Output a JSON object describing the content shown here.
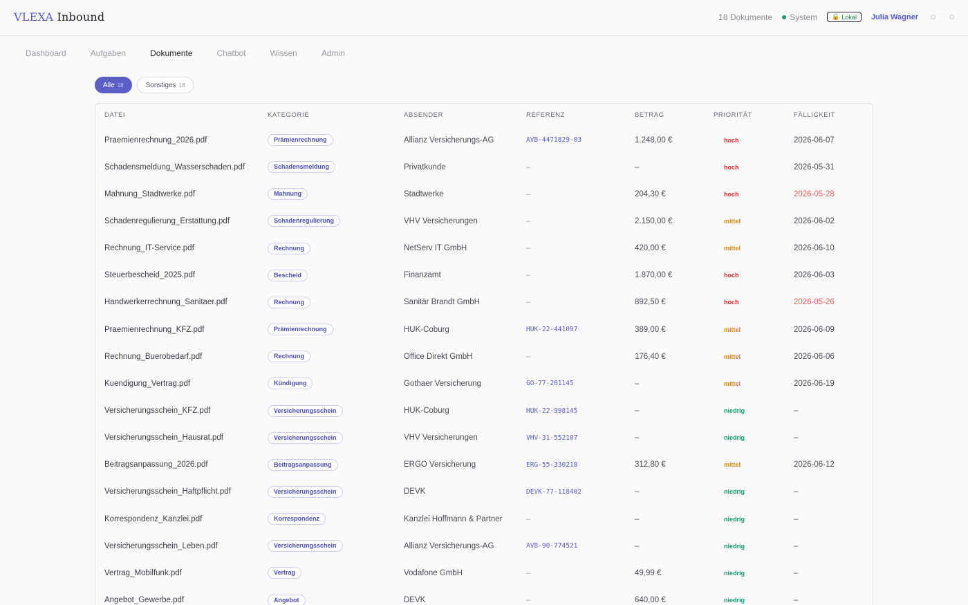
{
  "header": {
    "brand": "VLEXA",
    "product": "Inbound",
    "doc_count": "18 Dokumente",
    "system_label": "System",
    "lokal_label": "Lokal",
    "user_name": "Julia Wagner",
    "colors": {
      "accent": "#5c5ec6",
      "status_ok": "#1a9a6a"
    }
  },
  "nav": {
    "tabs": [
      {
        "label": "Dashboard"
      },
      {
        "label": "Aufgaben"
      },
      {
        "label": "Dokumente",
        "active": true
      },
      {
        "label": "Chatbot"
      },
      {
        "label": "Wissen"
      },
      {
        "label": "Admin"
      }
    ]
  },
  "filters": [
    {
      "label": "Alle",
      "count": "18",
      "active": true
    },
    {
      "label": "Sonstiges",
      "count": "18",
      "active": false
    }
  ],
  "table": {
    "columns": [
      "Datei",
      "Kategorie",
      "Absender",
      "Referenz",
      "Betrag",
      "Priorität",
      "Fälligkeit"
    ],
    "rows": [
      {
        "file": "Praemienrechnung_2026.pdf",
        "category": "Prämienrechnung",
        "sender": "Allianz Versicherungs-AG",
        "ref": "AVB-4471829-03",
        "amount": "1.248,00 €",
        "priority": "hoch",
        "due": "2026-06-07",
        "overdue": false
      },
      {
        "file": "Schadensmeldung_Wasserschaden.pdf",
        "category": "Schadensmeldung",
        "sender": "Privatkunde",
        "ref": "–",
        "amount": "–",
        "priority": "hoch",
        "due": "2026-05-31",
        "overdue": false
      },
      {
        "file": "Mahnung_Stadtwerke.pdf",
        "category": "Mahnung",
        "sender": "Stadtwerke",
        "ref": "–",
        "amount": "204,30 €",
        "priority": "hoch",
        "due": "2026-05-28",
        "overdue": true
      },
      {
        "file": "Schadenregulierung_Erstattung.pdf",
        "category": "Schadenregulierung",
        "sender": "VHV Versicherungen",
        "ref": "–",
        "amount": "2.150,00 €",
        "priority": "mittel",
        "due": "2026-06-02",
        "overdue": false
      },
      {
        "file": "Rechnung_IT-Service.pdf",
        "category": "Rechnung",
        "sender": "NetServ IT GmbH",
        "ref": "–",
        "amount": "420,00 €",
        "priority": "mittel",
        "due": "2026-06-10",
        "overdue": false
      },
      {
        "file": "Steuerbescheid_2025.pdf",
        "category": "Bescheid",
        "sender": "Finanzamt",
        "ref": "–",
        "amount": "1.870,00 €",
        "priority": "hoch",
        "due": "2026-06-03",
        "overdue": false
      },
      {
        "file": "Handwerkerrechnung_Sanitaer.pdf",
        "category": "Rechnung",
        "sender": "Sanitär Brandt GmbH",
        "ref": "–",
        "amount": "892,50 €",
        "priority": "hoch",
        "due": "2026-05-26",
        "overdue": true
      },
      {
        "file": "Praemienrechnung_KFZ.pdf",
        "category": "Prämienrechnung",
        "sender": "HUK-Coburg",
        "ref": "HUK-22-441097",
        "amount": "389,00 €",
        "priority": "mittel",
        "due": "2026-06-09",
        "overdue": false
      },
      {
        "file": "Rechnung_Buerobedarf.pdf",
        "category": "Rechnung",
        "sender": "Office Direkt GmbH",
        "ref": "–",
        "amount": "176,40 €",
        "priority": "mittel",
        "due": "2026-06-06",
        "overdue": false
      },
      {
        "file": "Kuendigung_Vertrag.pdf",
        "category": "Kündigung",
        "sender": "Gothaer Versicherung",
        "ref": "GO-77-201145",
        "amount": "–",
        "priority": "mittel",
        "due": "2026-06-19",
        "overdue": false
      },
      {
        "file": "Versicherungsschein_KFZ.pdf",
        "category": "Versicherungsschein",
        "sender": "HUK-Coburg",
        "ref": "HUK-22-998145",
        "amount": "–",
        "priority": "niedrig",
        "due": "–",
        "overdue": false
      },
      {
        "file": "Versicherungsschein_Hausrat.pdf",
        "category": "Versicherungsschein",
        "sender": "VHV Versicherungen",
        "ref": "VHV-31-552107",
        "amount": "–",
        "priority": "niedrig",
        "due": "–",
        "overdue": false
      },
      {
        "file": "Beitragsanpassung_2026.pdf",
        "category": "Beitragsanpassung",
        "sender": "ERGO Versicherung",
        "ref": "ERG-55-330218",
        "amount": "312,80 €",
        "priority": "mittel",
        "due": "2026-06-12",
        "overdue": false
      },
      {
        "file": "Versicherungsschein_Haftpflicht.pdf",
        "category": "Versicherungsschein",
        "sender": "DEVK",
        "ref": "DEVK-77-118402",
        "amount": "–",
        "priority": "niedrig",
        "due": "–",
        "overdue": false
      },
      {
        "file": "Korrespondenz_Kanzlei.pdf",
        "category": "Korrespondenz",
        "sender": "Kanzlei Hoffmann & Partner",
        "ref": "–",
        "amount": "–",
        "priority": "niedrig",
        "due": "–",
        "overdue": false
      },
      {
        "file": "Versicherungsschein_Leben.pdf",
        "category": "Versicherungsschein",
        "sender": "Allianz Versicherungs-AG",
        "ref": "AVB-90-774521",
        "amount": "–",
        "priority": "niedrig",
        "due": "–",
        "overdue": false
      },
      {
        "file": "Vertrag_Mobilfunk.pdf",
        "category": "Vertrag",
        "sender": "Vodafone GmbH",
        "ref": "–",
        "amount": "49,99 €",
        "priority": "niedrig",
        "due": "–",
        "overdue": false
      },
      {
        "file": "Angebot_Gewerbe.pdf",
        "category": "Angebot",
        "sender": "DEVK",
        "ref": "–",
        "amount": "640,00 €",
        "priority": "niedrig",
        "due": "–",
        "overdue": false
      }
    ]
  }
}
